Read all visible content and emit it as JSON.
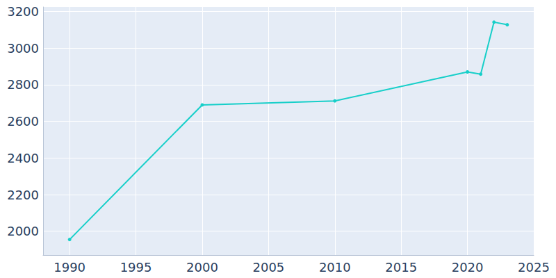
{
  "chart_data": {
    "type": "line",
    "x": [
      1990,
      2000,
      2010,
      2020,
      2021,
      2022,
      2023
    ],
    "values": [
      1955,
      2690,
      2712,
      2870,
      2858,
      3142,
      3128
    ],
    "color": "#17cfc9",
    "marker": "circle",
    "xlim": [
      1988,
      2025
    ],
    "xticks": [
      1990,
      1995,
      2000,
      2005,
      2010,
      2015,
      2020,
      2025
    ],
    "ylim": [
      1870,
      3225
    ],
    "yticks": [
      2000,
      2200,
      2400,
      2600,
      2800,
      3000,
      3200
    ],
    "grid": true
  }
}
